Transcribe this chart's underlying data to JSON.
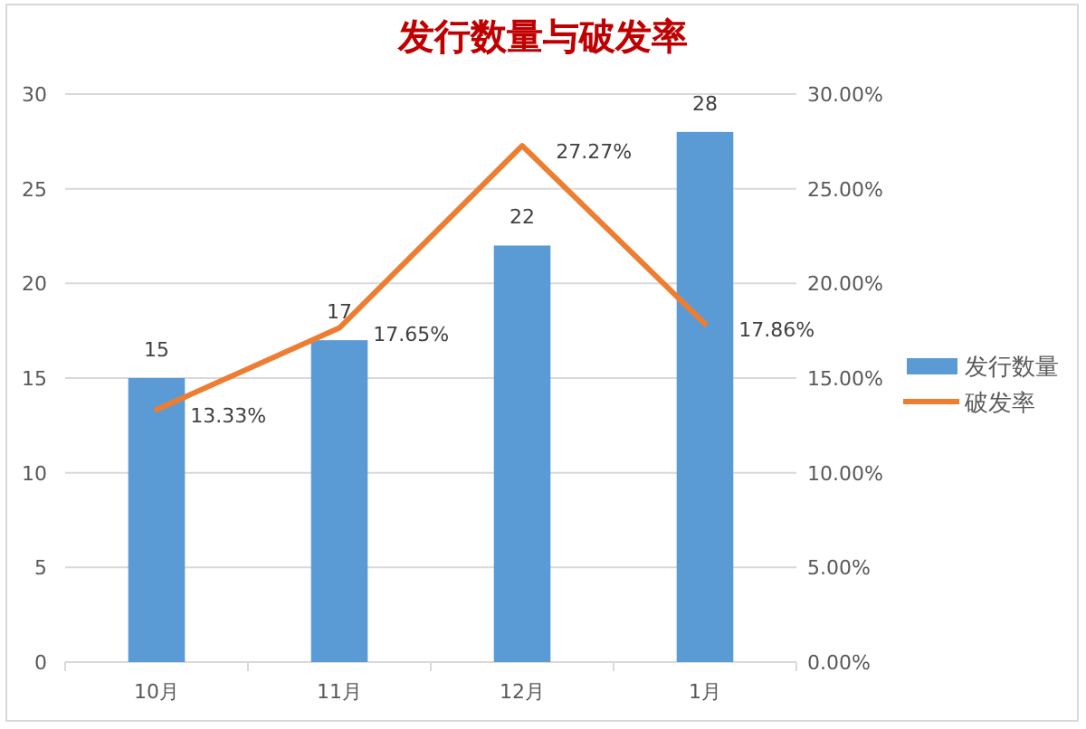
{
  "chart_data": {
    "type": "bar",
    "title": "发行数量与破发率",
    "categories": [
      "10月",
      "11月",
      "12月",
      "1月"
    ],
    "series": [
      {
        "name": "发行数量",
        "color": "#5b9bd5",
        "values": [
          15,
          17,
          22,
          28
        ]
      },
      {
        "name": "破发率",
        "type": "line",
        "color": "#ed7d31",
        "values": [
          13.33,
          17.65,
          27.27,
          17.86
        ],
        "value_labels": [
          "13.33%",
          "17.65%",
          "27.27%",
          "17.86%"
        ]
      }
    ],
    "ylim": [
      0,
      30
    ],
    "yticks": [
      0,
      5,
      10,
      15,
      20,
      25,
      30
    ],
    "y2lim": [
      0,
      30
    ],
    "y2ticks": [
      {
        "value": 0,
        "label": "0.00%"
      },
      {
        "value": 5,
        "label": "5.00%"
      },
      {
        "value": 10,
        "label": "10.00%"
      },
      {
        "value": 15,
        "label": "15.00%"
      },
      {
        "value": 20,
        "label": "20.00%"
      },
      {
        "value": 25,
        "label": "25.00%"
      },
      {
        "value": 30,
        "label": "30.00%"
      }
    ],
    "grid": "y",
    "legend": "right",
    "data_labels": true
  }
}
